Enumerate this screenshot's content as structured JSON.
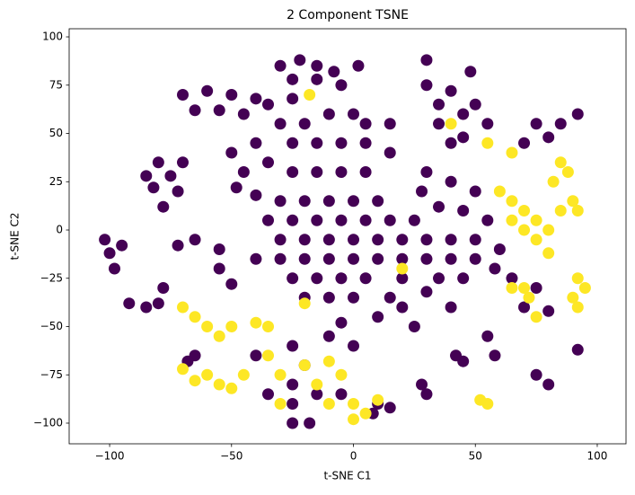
{
  "chart_data": {
    "type": "scatter",
    "title": "2 Component TSNE",
    "x_label": "t-SNE C1",
    "y_label": "t-SNE C2",
    "xlim": [
      -116.6,
      111.8
    ],
    "ylim": [
      -110.7,
      104.2
    ],
    "xticks": [
      {
        "value": -100,
        "label": "−100"
      },
      {
        "value": -50,
        "label": "−50"
      },
      0,
      50,
      100
    ],
    "yticks": [
      {
        "value": -100,
        "label": "−100"
      },
      {
        "value": -75,
        "label": "−75"
      },
      {
        "value": -50,
        "label": "−50"
      },
      {
        "value": -25,
        "label": "−25"
      },
      0,
      25,
      50,
      75,
      100
    ],
    "grid": false,
    "series": [
      {
        "color": "#440154",
        "x": [
          -30,
          -22,
          -15,
          -8,
          -25,
          -15,
          -5,
          2,
          30,
          -70,
          -60,
          -50,
          -40,
          -65,
          -55,
          -45,
          -35,
          -25,
          -30,
          -20,
          -10,
          0,
          5,
          -15,
          -5,
          5,
          -25,
          -40,
          -50,
          -35,
          -25,
          -15,
          -5,
          5,
          15,
          15,
          -80,
          -75,
          -82,
          -72,
          -78,
          -85,
          -70,
          -48,
          -45,
          -40,
          -30,
          -20,
          -10,
          0,
          10,
          -35,
          -25,
          -15,
          -5,
          5,
          15,
          25,
          -30,
          -20,
          -10,
          0,
          10,
          20,
          30,
          40,
          50,
          -40,
          -30,
          -20,
          -10,
          0,
          10,
          20,
          30,
          40,
          50,
          -25,
          -15,
          -5,
          5,
          20,
          35,
          45,
          -20,
          -10,
          0,
          15,
          30,
          -55,
          -55,
          -50,
          -65,
          -72,
          -102,
          -100,
          -95,
          -98,
          -92,
          -85,
          -78,
          -80,
          35,
          45,
          50,
          55,
          45,
          40,
          75,
          80,
          70,
          85,
          92,
          30,
          40,
          50,
          28,
          35,
          45,
          55,
          30,
          40,
          35,
          48,
          60,
          58,
          65,
          -35,
          -25,
          -15,
          -25,
          -5,
          -20,
          -10,
          0,
          10,
          25,
          -40,
          -25,
          30,
          28,
          45,
          42,
          55,
          58,
          10,
          8,
          15,
          -65,
          -68,
          -25,
          -18,
          75,
          80,
          75,
          70,
          80,
          92,
          20,
          40,
          -5
        ],
        "y": [
          85,
          88,
          85,
          82,
          78,
          78,
          75,
          85,
          88,
          70,
          72,
          70,
          68,
          62,
          62,
          60,
          65,
          68,
          55,
          55,
          60,
          60,
          55,
          45,
          45,
          45,
          45,
          45,
          40,
          35,
          30,
          30,
          30,
          30,
          40,
          55,
          35,
          28,
          22,
          20,
          12,
          28,
          35,
          22,
          30,
          18,
          15,
          15,
          15,
          15,
          15,
          5,
          5,
          5,
          5,
          5,
          5,
          5,
          -5,
          -5,
          -5,
          -5,
          -5,
          -5,
          -5,
          -5,
          -5,
          -15,
          -15,
          -15,
          -15,
          -15,
          -15,
          -15,
          -15,
          -15,
          -15,
          -25,
          -25,
          -25,
          -25,
          -25,
          -25,
          -25,
          -35,
          -35,
          -35,
          -35,
          -32,
          -10,
          -20,
          -28,
          -5,
          -8,
          -5,
          -12,
          -8,
          -20,
          -38,
          -40,
          -30,
          -38,
          55,
          60,
          65,
          55,
          48,
          45,
          55,
          48,
          45,
          55,
          60,
          30,
          25,
          20,
          20,
          12,
          10,
          5,
          75,
          72,
          65,
          82,
          -10,
          -20,
          -25,
          -85,
          -90,
          -85,
          -80,
          -85,
          -70,
          -55,
          -60,
          -45,
          -50,
          -65,
          -60,
          -85,
          -80,
          -68,
          -65,
          -55,
          -65,
          -90,
          -95,
          -92,
          -65,
          -68,
          -100,
          -100,
          -75,
          -80,
          -30,
          -40,
          -42,
          -62,
          -40,
          -40,
          -48
        ]
      },
      {
        "color": "#fde725",
        "x": [
          60,
          65,
          70,
          75,
          80,
          85,
          90,
          75,
          80,
          70,
          65,
          82,
          88,
          92,
          95,
          92,
          90,
          92,
          70,
          72,
          65,
          75,
          55,
          52,
          -60,
          -55,
          -50,
          -65,
          -70,
          -30,
          -20,
          -10,
          -35,
          -15,
          -5,
          -30,
          -60,
          -55,
          -50,
          -65,
          -70,
          -40,
          -35,
          0,
          5,
          10,
          0,
          -10,
          -45,
          40,
          55,
          65,
          85,
          20,
          -18,
          -20
        ],
        "y": [
          20,
          15,
          10,
          5,
          0,
          10,
          15,
          -5,
          -12,
          0,
          5,
          25,
          30,
          10,
          -30,
          -25,
          -35,
          -40,
          -30,
          -35,
          -30,
          -45,
          -90,
          -88,
          -75,
          -80,
          -82,
          -78,
          -72,
          -75,
          -70,
          -68,
          -65,
          -80,
          -75,
          -90,
          -50,
          -55,
          -50,
          -45,
          -40,
          -48,
          -50,
          -90,
          -95,
          -88,
          -98,
          -90,
          -75,
          55,
          45,
          40,
          35,
          -20,
          70,
          -38
        ]
      }
    ]
  }
}
